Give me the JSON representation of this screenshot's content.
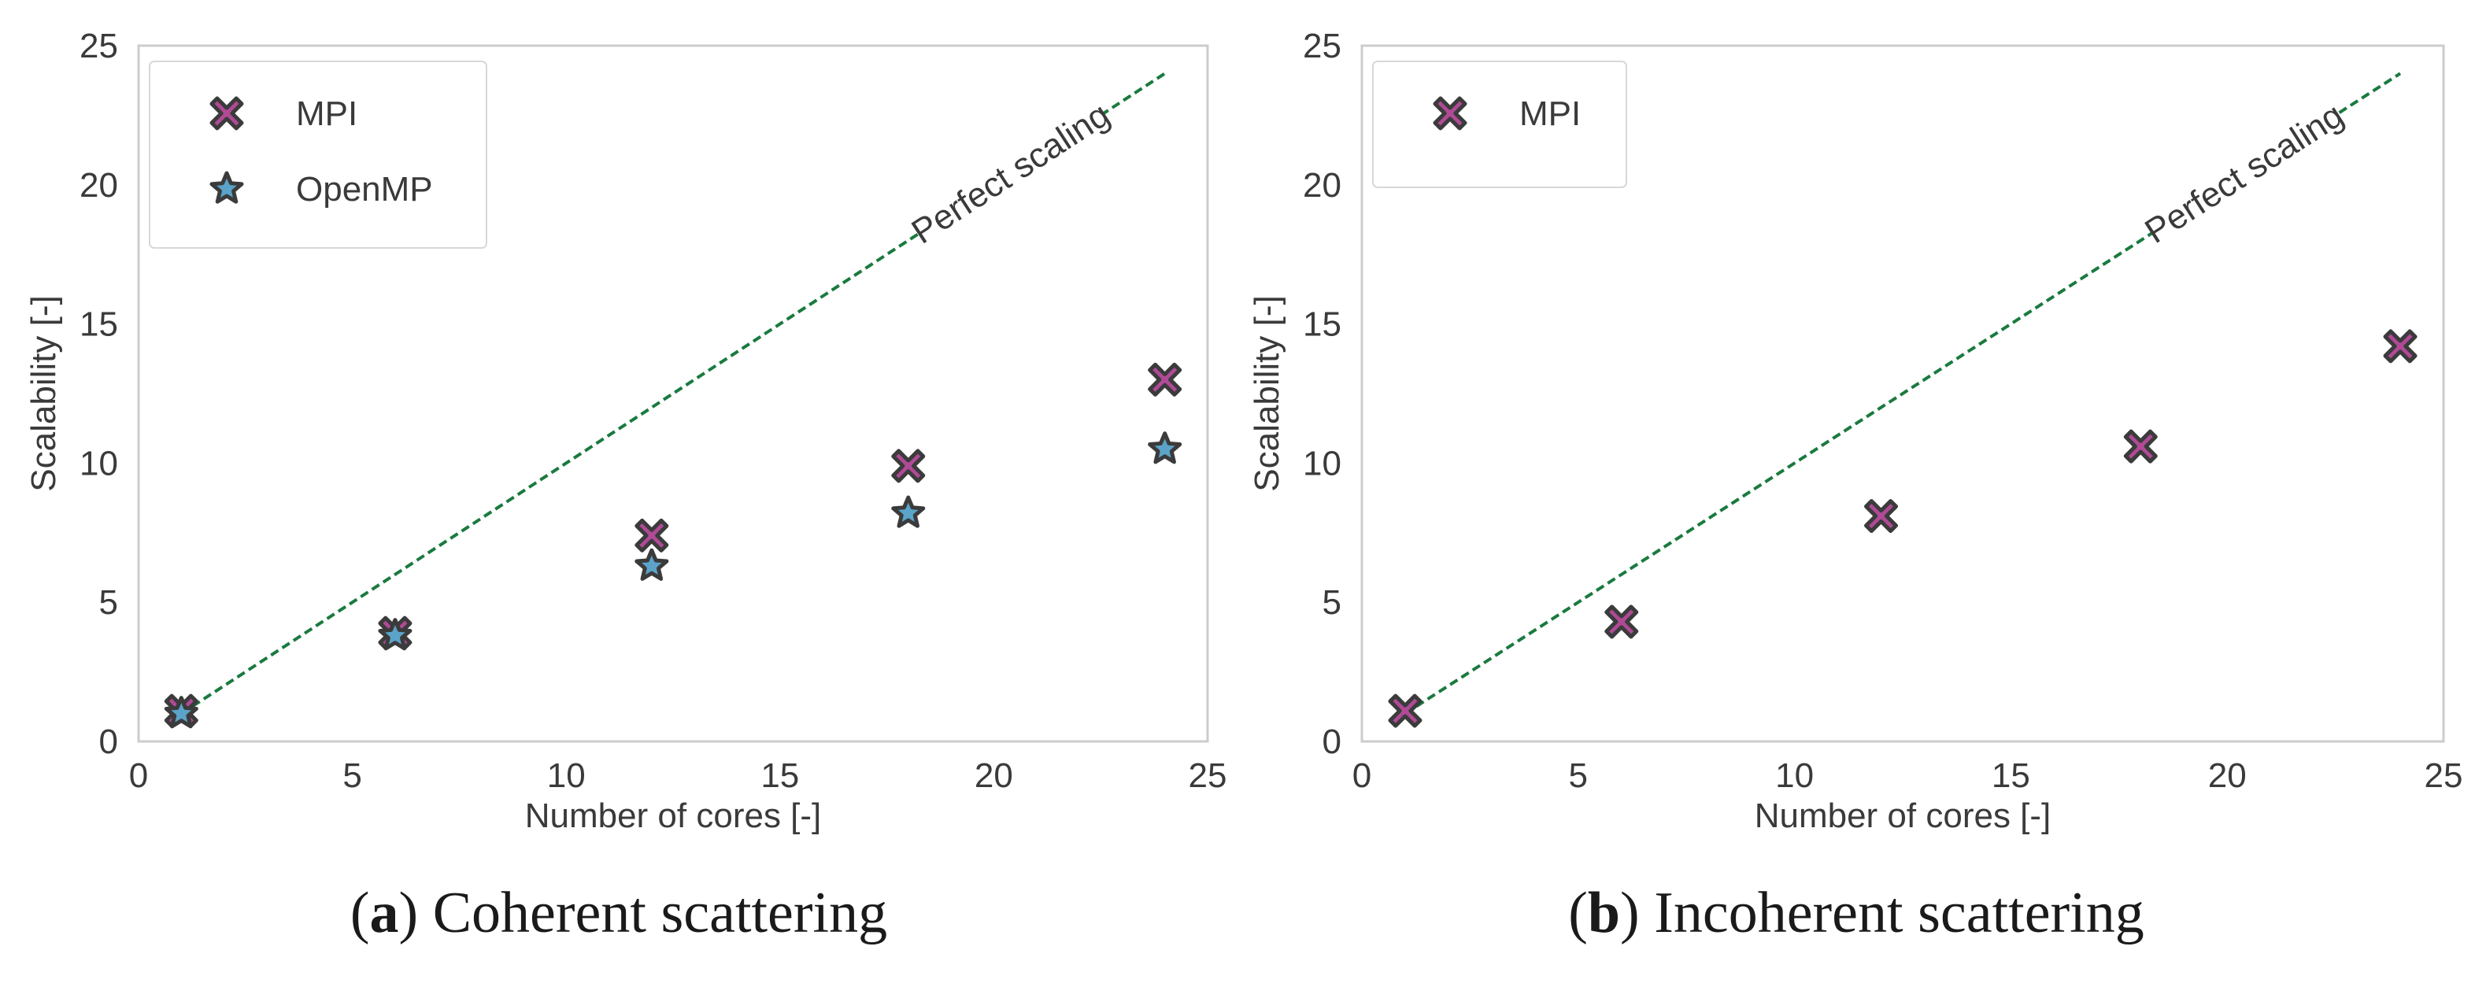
{
  "colors": {
    "mpi": "#b04a96",
    "openmp": "#5ba3c9",
    "marker_edge": "#3b3b3b",
    "perfect_line": "#1a7a3f",
    "frame": "#cccccc",
    "text": "#3a3a3a"
  },
  "chart_data": [
    {
      "type": "scatter",
      "panel": "a",
      "caption": {
        "letter": "a",
        "open": "(",
        "close": ")",
        "text": " Coherent scattering"
      },
      "xlabel": "Number of cores [-]",
      "ylabel": "Scalability [-]",
      "xlim": [
        0,
        25
      ],
      "ylim": [
        0,
        25
      ],
      "xticks": [
        0,
        5,
        10,
        15,
        20,
        25
      ],
      "yticks": [
        0,
        5,
        10,
        15,
        20,
        25
      ],
      "grid": false,
      "legend_position": "top-left",
      "reference_line": {
        "label": "Perfect scaling",
        "x": [
          1,
          24
        ],
        "y": [
          1,
          24
        ]
      },
      "series": [
        {
          "name": "MPI",
          "marker": "x",
          "x": [
            1,
            6,
            12,
            18,
            24
          ],
          "y": [
            1.1,
            3.9,
            7.4,
            9.9,
            13.0
          ]
        },
        {
          "name": "OpenMP",
          "marker": "star",
          "x": [
            1,
            6,
            12,
            18,
            24
          ],
          "y": [
            1.0,
            3.8,
            6.3,
            8.2,
            10.5
          ]
        }
      ]
    },
    {
      "type": "scatter",
      "panel": "b",
      "caption": {
        "letter": "b",
        "open": "(",
        "close": ")",
        "text": " Incoherent scattering"
      },
      "xlabel": "Number of cores [-]",
      "ylabel": "Scalability [-]",
      "xlim": [
        0,
        25
      ],
      "ylim": [
        0,
        25
      ],
      "xticks": [
        0,
        5,
        10,
        15,
        20,
        25
      ],
      "yticks": [
        0,
        5,
        10,
        15,
        20,
        25
      ],
      "grid": false,
      "legend_position": "top-left",
      "reference_line": {
        "label": "Perfect scaling",
        "x": [
          1,
          24
        ],
        "y": [
          1,
          24
        ]
      },
      "series": [
        {
          "name": "MPI",
          "marker": "x",
          "x": [
            1,
            6,
            12,
            18,
            24
          ],
          "y": [
            1.1,
            4.3,
            8.1,
            10.6,
            14.2
          ]
        }
      ]
    }
  ]
}
